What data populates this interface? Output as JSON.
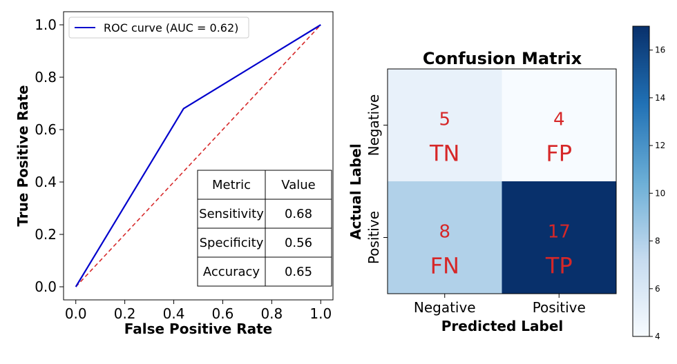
{
  "chart_data": [
    {
      "type": "line",
      "xlabel": "False Positive Rate",
      "ylabel": "True Positive Rate",
      "xlim": [
        -0.05,
        1.05
      ],
      "ylim": [
        -0.05,
        1.05
      ],
      "xticks": [
        "0.0",
        "0.2",
        "0.4",
        "0.6",
        "0.8",
        "1.0"
      ],
      "yticks": [
        "0.0",
        "0.2",
        "0.4",
        "0.6",
        "0.8",
        "1.0"
      ],
      "legend_position": "top-left",
      "series": [
        {
          "name": "ROC curve (AUC = 0.62)",
          "x": [
            0.0,
            0.44,
            1.0
          ],
          "y": [
            0.0,
            0.68,
            1.0
          ],
          "color": "#0000cc",
          "style": "solid"
        },
        {
          "x": [
            0.0,
            1.0
          ],
          "y": [
            0.0,
            1.0
          ],
          "color": "#d62728",
          "style": "dashed"
        }
      ],
      "table": {
        "position": "bottom-right",
        "header": [
          "Metric",
          "Value"
        ],
        "rows": [
          [
            "Sensitivity",
            "0.68"
          ],
          [
            "Specificity",
            "0.56"
          ],
          [
            "Accuracy",
            "0.65"
          ]
        ]
      }
    },
    {
      "type": "heatmap",
      "title": "Confusion Matrix",
      "xlabel": "Predicted Label",
      "ylabel": "Actual Label",
      "x_categories": [
        "Negative",
        "Positive"
      ],
      "y_categories": [
        "Negative",
        "Positive"
      ],
      "values": [
        [
          5,
          4
        ],
        [
          8,
          17
        ]
      ],
      "cell_labels": [
        [
          "TN",
          "FP"
        ],
        [
          "FN",
          "TP"
        ]
      ],
      "colormap": "Blues",
      "text_color": "#d62728",
      "colorbar": {
        "min": 4,
        "max": 17,
        "ticks": [
          "4",
          "6",
          "8",
          "10",
          "12",
          "14",
          "16"
        ]
      }
    }
  ]
}
